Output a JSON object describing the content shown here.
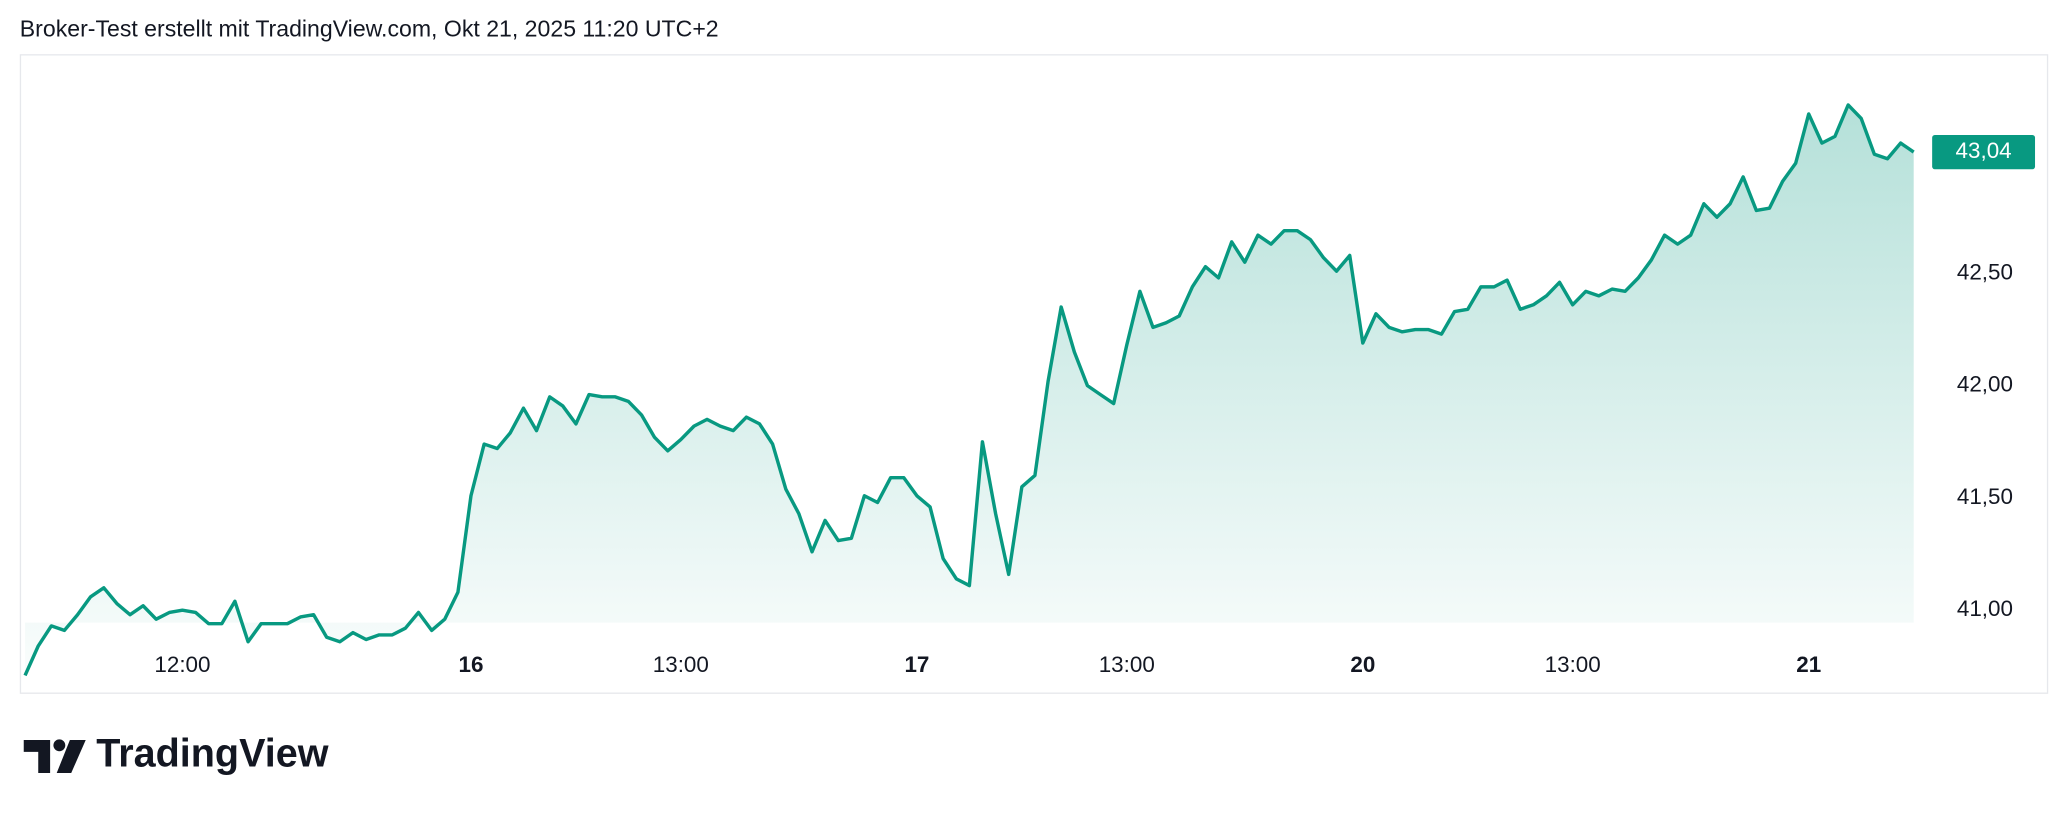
{
  "header": "Broker-Test erstellt mit TradingView.com, Okt 21, 2025 11:20 UTC+2",
  "footer": {
    "brand": "TradingView"
  },
  "chart_data": {
    "type": "area",
    "color": "#089981",
    "values": [
      40.71,
      40.84,
      40.93,
      40.91,
      40.98,
      41.06,
      41.1,
      41.03,
      40.98,
      41.02,
      40.96,
      40.99,
      41.0,
      40.99,
      40.94,
      40.94,
      41.04,
      40.86,
      40.94,
      40.94,
      40.94,
      40.97,
      40.98,
      40.88,
      40.86,
      40.9,
      40.87,
      40.89,
      40.89,
      40.92,
      40.99,
      40.91,
      40.96,
      41.08,
      41.51,
      41.74,
      41.72,
      41.79,
      41.9,
      41.8,
      41.95,
      41.91,
      41.83,
      41.96,
      41.95,
      41.95,
      41.93,
      41.87,
      41.77,
      41.71,
      41.76,
      41.82,
      41.85,
      41.82,
      41.8,
      41.86,
      41.83,
      41.74,
      41.54,
      41.43,
      41.26,
      41.4,
      41.31,
      41.32,
      41.51,
      41.48,
      41.59,
      41.59,
      41.51,
      41.46,
      41.23,
      41.14,
      41.11,
      41.75,
      41.43,
      41.16,
      41.55,
      41.6,
      42.02,
      42.35,
      42.15,
      42.0,
      41.96,
      41.92,
      42.18,
      42.42,
      42.26,
      42.28,
      42.31,
      42.44,
      42.53,
      42.48,
      42.64,
      42.55,
      42.67,
      42.63,
      42.69,
      42.69,
      42.65,
      42.57,
      42.51,
      42.58,
      42.19,
      42.32,
      42.26,
      42.24,
      42.25,
      42.25,
      42.23,
      42.33,
      42.34,
      42.44,
      42.44,
      42.47,
      42.34,
      42.36,
      42.4,
      42.46,
      42.36,
      42.42,
      42.4,
      42.43,
      42.42,
      42.48,
      42.56,
      42.67,
      42.63,
      42.67,
      42.81,
      42.75,
      42.81,
      42.93,
      42.78,
      42.79,
      42.91,
      42.99,
      43.21,
      43.08,
      43.11,
      43.25,
      43.19,
      43.03,
      43.01,
      43.08,
      43.04
    ],
    "price_label": "43,04",
    "xlim": [
      0,
      144
    ],
    "xticks": [
      {
        "value": 12,
        "label": "12:00"
      },
      {
        "value": 34,
        "label": "16"
      },
      {
        "value": 50,
        "label": "13:00"
      },
      {
        "value": 68,
        "label": "17"
      },
      {
        "value": 84,
        "label": "13:00"
      },
      {
        "value": 102,
        "label": "20"
      },
      {
        "value": 118,
        "label": "13:00"
      },
      {
        "value": 136,
        "label": "21"
      }
    ],
    "ylim": [
      40.71,
      43.47
    ],
    "yticks": [
      {
        "value": 41,
        "label": "41,00"
      },
      {
        "value": 41.5,
        "label": "41,50"
      },
      {
        "value": 42,
        "label": "42,00"
      },
      {
        "value": 42.5,
        "label": "42,50"
      }
    ]
  }
}
